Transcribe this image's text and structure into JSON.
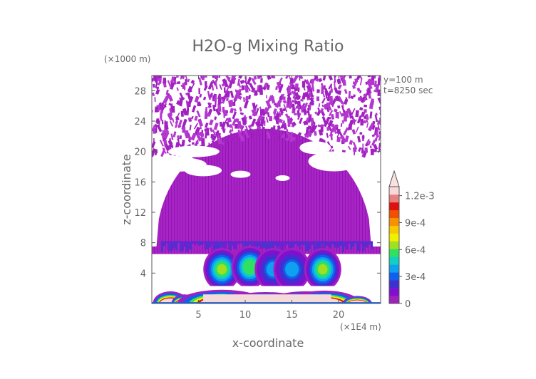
{
  "chart_data": {
    "type": "heatmap",
    "title": "H2O-g Mixing Ratio",
    "xlabel": "x-coordinate",
    "ylabel": "z-coordinate",
    "x_unit_label": "(×1E4 m)",
    "y_unit_label": "(×1000 m)",
    "annotations": [
      "y=100 m",
      "t=8250 sec"
    ],
    "xlim": [
      0,
      24.5
    ],
    "ylim": [
      0,
      30
    ],
    "x_ticks": [
      5,
      10,
      15,
      20
    ],
    "y_ticks": [
      4,
      8,
      12,
      16,
      20,
      24,
      28
    ],
    "colorbar": {
      "labels": [
        {
          "text": "0",
          "value": 0
        },
        {
          "text": "3e-4",
          "value": 0.0003
        },
        {
          "text": "6e-4",
          "value": 0.0006
        },
        {
          "text": "9e-4",
          "value": 0.0009
        },
        {
          "text": "1.2e-3",
          "value": 0.0012
        }
      ],
      "min": 0,
      "max": 0.0013,
      "colors": [
        "#a020c0",
        "#8010d0",
        "#4030d0",
        "#1060f0",
        "#10a0f0",
        "#10d0c0",
        "#30e060",
        "#a0e020",
        "#f0f000",
        "#f8c800",
        "#f89000",
        "#f05000",
        "#e01010",
        "#e88080",
        "#f8d8d8"
      ],
      "extend_arrow_color": "#fbe0e0"
    },
    "regions": {
      "moist_layer": {
        "x": [
          0,
          24.5
        ],
        "z": [
          0.5,
          28.5
        ],
        "color": "#a020c0",
        "mixing_ratio": 2e-05
      },
      "dry_gaps_z": [
        [
          17,
          21
        ],
        [
          20,
          23
        ]
      ],
      "convective_cores": [
        {
          "x_center": 7.5,
          "z_center": 4.5,
          "peak": 0.00065
        },
        {
          "x_center": 10.5,
          "z_center": 4.8,
          "peak": 0.0006
        },
        {
          "x_center": 13.0,
          "z_center": 4.5,
          "peak": 0.0004
        },
        {
          "x_center": 15.0,
          "z_center": 4.5,
          "peak": 0.0004
        },
        {
          "x_center": 18.3,
          "z_center": 4.5,
          "peak": 0.00062
        }
      ],
      "surface_layer": {
        "z": [
          0,
          1.8
        ],
        "peak": 0.0013
      }
    }
  }
}
